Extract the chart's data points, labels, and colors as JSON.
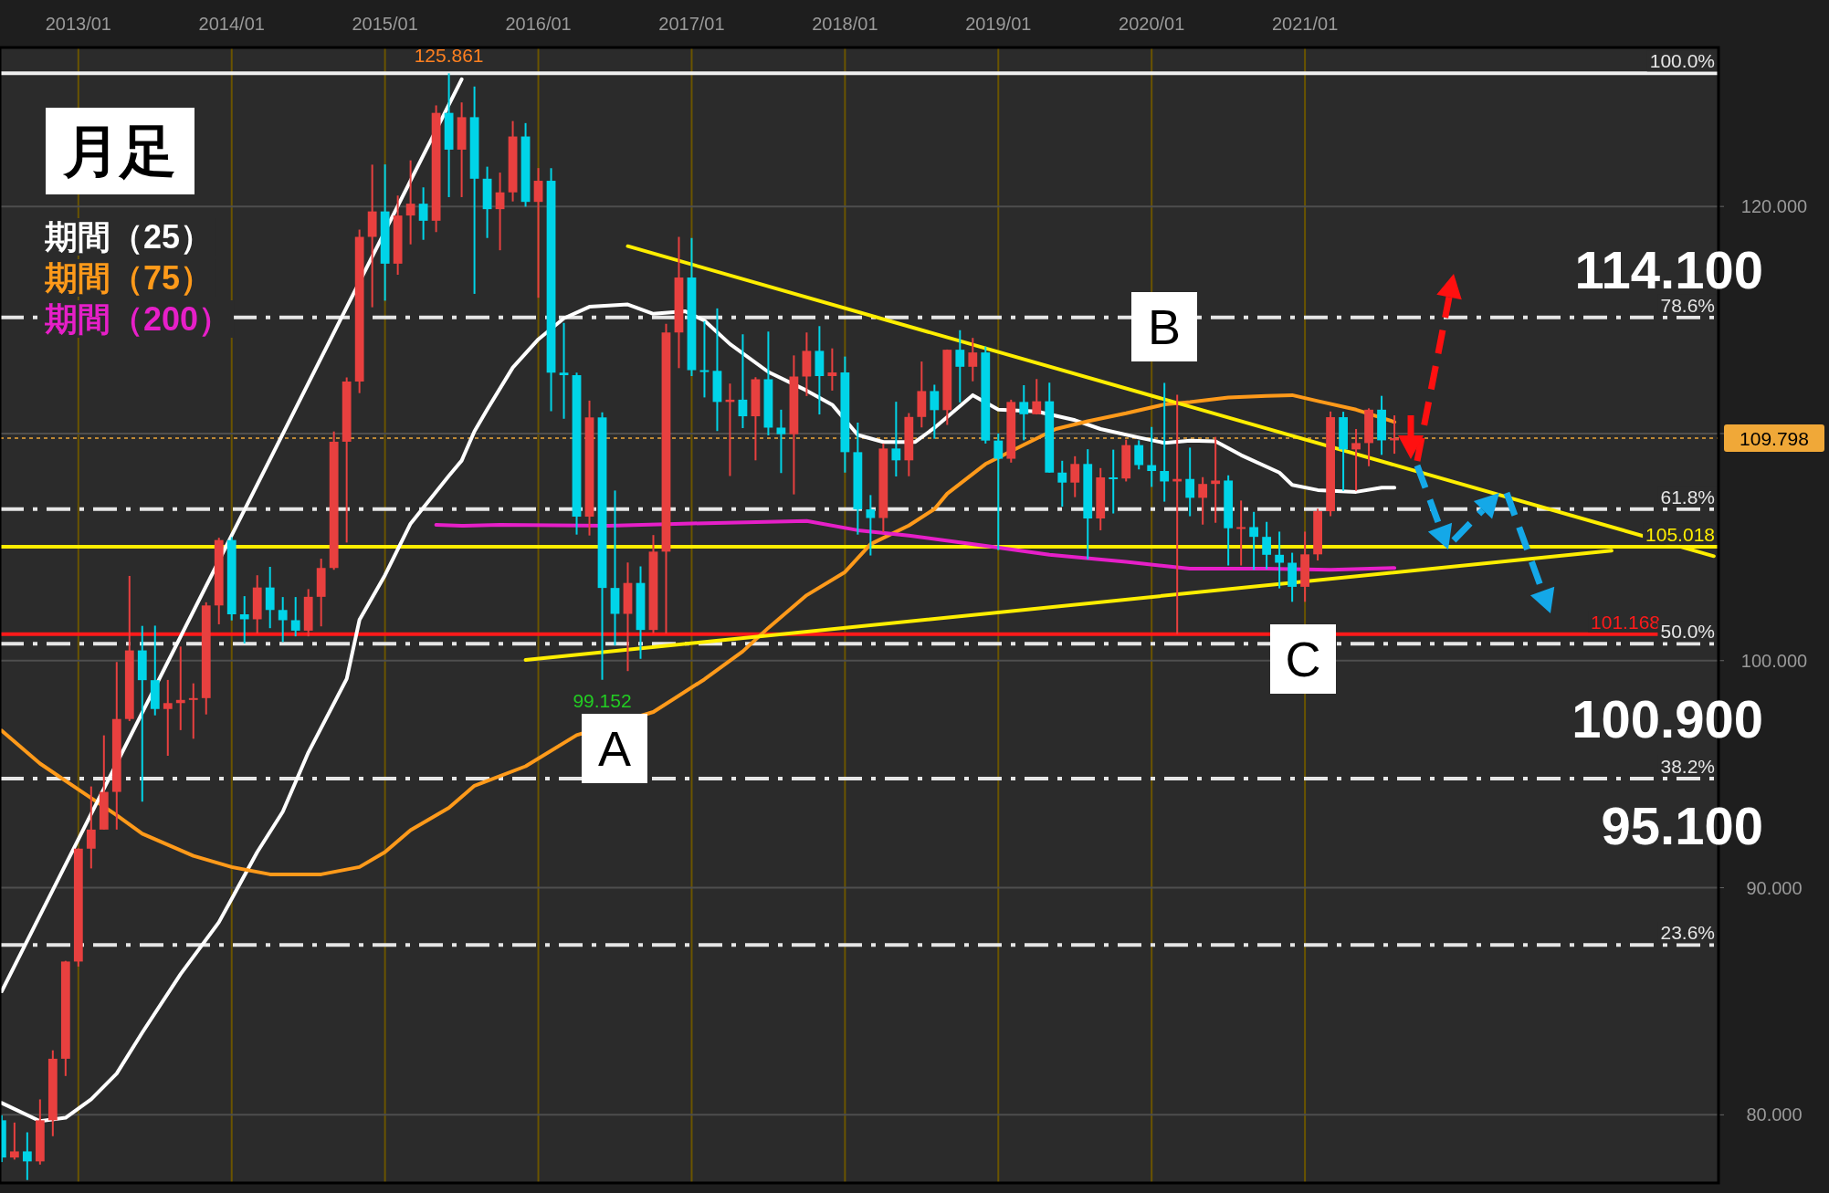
{
  "chart_data": {
    "type": "candlestick",
    "title": "月足",
    "x": [
      "2012-07",
      "2012-08",
      "2012-09",
      "2012-10",
      "2012-11",
      "2012-12",
      "2013-01",
      "2013-02",
      "2013-03",
      "2013-04",
      "2013-05",
      "2013-06",
      "2013-07",
      "2013-08",
      "2013-09",
      "2013-10",
      "2013-11",
      "2013-12",
      "2014-01",
      "2014-02",
      "2014-03",
      "2014-04",
      "2014-05",
      "2014-06",
      "2014-07",
      "2014-08",
      "2014-09",
      "2014-10",
      "2014-11",
      "2014-12",
      "2015-01",
      "2015-02",
      "2015-03",
      "2015-04",
      "2015-05",
      "2015-06",
      "2015-07",
      "2015-08",
      "2015-09",
      "2015-10",
      "2015-11",
      "2015-12",
      "2016-01",
      "2016-02",
      "2016-03",
      "2016-04",
      "2016-05",
      "2016-06",
      "2016-07",
      "2016-08",
      "2016-09",
      "2016-10",
      "2016-11",
      "2016-12",
      "2017-01",
      "2017-02",
      "2017-03",
      "2017-04",
      "2017-05",
      "2017-06",
      "2017-07",
      "2017-08",
      "2017-09",
      "2017-10",
      "2017-11",
      "2017-12",
      "2018-01",
      "2018-02",
      "2018-03",
      "2018-04",
      "2018-05",
      "2018-06",
      "2018-07",
      "2018-08",
      "2018-09",
      "2018-10",
      "2018-11",
      "2018-12",
      "2019-01",
      "2019-02",
      "2019-03",
      "2019-04",
      "2019-05",
      "2019-06",
      "2019-07",
      "2019-08",
      "2019-09",
      "2019-10",
      "2019-11",
      "2019-12",
      "2020-01",
      "2020-02",
      "2020-03",
      "2020-04",
      "2020-05",
      "2020-06",
      "2020-07",
      "2020-08",
      "2020-09",
      "2020-10",
      "2020-11",
      "2020-12",
      "2021-01",
      "2021-02",
      "2021-03",
      "2021-04",
      "2021-05",
      "2021-06",
      "2021-07",
      "2021-08"
    ],
    "ohlc": [
      [
        79.76,
        79.98,
        77.92,
        78.12
      ],
      [
        78.12,
        79.66,
        78.03,
        78.39
      ],
      [
        78.39,
        79.23,
        77.13,
        77.95
      ],
      [
        77.95,
        80.68,
        77.81,
        79.76
      ],
      [
        79.76,
        82.84,
        79.06,
        82.47
      ],
      [
        82.47,
        86.78,
        81.71,
        86.75
      ],
      [
        86.75,
        91.73,
        86.53,
        91.72
      ],
      [
        91.72,
        94.46,
        90.85,
        92.56
      ],
      [
        92.56,
        96.71,
        92.56,
        94.22
      ],
      [
        94.22,
        99.94,
        92.56,
        97.43
      ],
      [
        97.43,
        103.73,
        97.34,
        100.45
      ],
      [
        100.45,
        101.53,
        93.79,
        99.14
      ],
      [
        99.14,
        101.54,
        97.59,
        97.87
      ],
      [
        97.87,
        99.15,
        95.81,
        98.13
      ],
      [
        98.13,
        100.62,
        96.94,
        98.27
      ],
      [
        98.27,
        99.0,
        96.56,
        98.35
      ],
      [
        98.35,
        102.57,
        97.63,
        102.43
      ],
      [
        102.43,
        105.41,
        101.6,
        105.31
      ],
      [
        105.31,
        105.44,
        101.77,
        102.04
      ],
      [
        102.04,
        102.84,
        100.76,
        101.82
      ],
      [
        101.82,
        103.76,
        101.2,
        103.22
      ],
      [
        103.22,
        104.13,
        101.43,
        102.23
      ],
      [
        102.23,
        102.8,
        100.82,
        101.78
      ],
      [
        101.78,
        102.8,
        101.07,
        101.32
      ],
      [
        101.32,
        103.15,
        101.07,
        102.81
      ],
      [
        102.81,
        104.49,
        101.51,
        104.08
      ],
      [
        104.08,
        110.09,
        104.0,
        109.64
      ],
      [
        109.64,
        112.47,
        105.2,
        112.29
      ],
      [
        112.29,
        118.98,
        111.78,
        118.66
      ],
      [
        118.66,
        121.84,
        115.56,
        119.78
      ],
      [
        119.78,
        121.85,
        115.85,
        117.48
      ],
      [
        117.48,
        120.48,
        116.99,
        119.6
      ],
      [
        119.6,
        122.03,
        118.33,
        120.12
      ],
      [
        120.12,
        120.84,
        118.53,
        119.37
      ],
      [
        119.37,
        124.45,
        118.87,
        124.12
      ],
      [
        124.12,
        125.861,
        120.41,
        122.5
      ],
      [
        122.5,
        124.58,
        120.41,
        123.93
      ],
      [
        123.93,
        125.28,
        116.15,
        121.22
      ],
      [
        121.22,
        121.75,
        118.61,
        119.88
      ],
      [
        119.88,
        121.49,
        118.07,
        120.62
      ],
      [
        120.62,
        123.76,
        120.22,
        123.08
      ],
      [
        123.08,
        123.67,
        119.99,
        120.2
      ],
      [
        120.2,
        121.69,
        115.98,
        121.13
      ],
      [
        121.13,
        121.68,
        110.98,
        112.68
      ],
      [
        112.68,
        114.87,
        110.65,
        112.57
      ],
      [
        112.57,
        112.68,
        105.55,
        106.34
      ],
      [
        106.34,
        111.45,
        105.51,
        110.71
      ],
      [
        110.71,
        110.93,
        99.152,
        103.2
      ],
      [
        103.2,
        107.49,
        100.67,
        102.06
      ],
      [
        102.06,
        104.32,
        99.54,
        103.42
      ],
      [
        103.42,
        104.15,
        100.08,
        101.35
      ],
      [
        101.35,
        105.53,
        101.21,
        104.8
      ],
      [
        104.8,
        114.83,
        101.2,
        114.45
      ],
      [
        114.45,
        118.66,
        112.88,
        116.87
      ],
      [
        116.87,
        118.61,
        112.53,
        112.79
      ],
      [
        112.79,
        114.95,
        111.59,
        112.76
      ],
      [
        112.76,
        115.51,
        110.11,
        111.39
      ],
      [
        111.39,
        112.2,
        108.13,
        111.49
      ],
      [
        111.49,
        114.37,
        110.24,
        110.76
      ],
      [
        110.76,
        112.48,
        108.82,
        112.39
      ],
      [
        112.39,
        114.49,
        109.92,
        110.26
      ],
      [
        110.26,
        111.05,
        108.26,
        109.97
      ],
      [
        109.97,
        113.44,
        107.32,
        112.51
      ],
      [
        112.51,
        114.45,
        111.65,
        113.64
      ],
      [
        113.64,
        114.73,
        110.84,
        112.53
      ],
      [
        112.53,
        113.75,
        111.89,
        112.69
      ],
      [
        112.69,
        113.39,
        108.28,
        109.18
      ],
      [
        109.18,
        110.48,
        105.55,
        106.66
      ],
      [
        106.66,
        107.29,
        104.63,
        106.28
      ],
      [
        106.28,
        109.56,
        105.66,
        109.34
      ],
      [
        109.34,
        111.4,
        108.11,
        108.82
      ],
      [
        108.82,
        110.9,
        108.12,
        110.73
      ],
      [
        110.73,
        113.17,
        110.27,
        111.87
      ],
      [
        111.87,
        112.15,
        109.77,
        111.03
      ],
      [
        111.03,
        113.7,
        110.38,
        113.69
      ],
      [
        113.69,
        114.55,
        111.37,
        112.94
      ],
      [
        112.94,
        114.21,
        112.3,
        113.57
      ],
      [
        113.57,
        113.83,
        109.56,
        109.69
      ],
      [
        109.69,
        110.0,
        104.87,
        108.89
      ],
      [
        108.89,
        111.49,
        108.72,
        111.39
      ],
      [
        111.39,
        112.13,
        109.7,
        110.85
      ],
      [
        110.85,
        112.4,
        110.84,
        111.42
      ],
      [
        111.42,
        112.24,
        108.28,
        108.28
      ],
      [
        108.28,
        108.8,
        106.78,
        107.84
      ],
      [
        107.84,
        109.0,
        107.2,
        108.66
      ],
      [
        108.66,
        109.31,
        104.46,
        106.26
      ],
      [
        106.26,
        108.48,
        105.74,
        108.07
      ],
      [
        108.07,
        109.29,
        106.48,
        108.02
      ],
      [
        108.02,
        109.73,
        107.89,
        109.49
      ],
      [
        109.49,
        109.7,
        108.42,
        108.61
      ],
      [
        108.61,
        110.29,
        107.65,
        108.35
      ],
      [
        108.35,
        112.23,
        107.0,
        107.89
      ],
      [
        107.89,
        111.71,
        101.18,
        108.0
      ],
      [
        108.0,
        109.38,
        106.36,
        107.17
      ],
      [
        107.17,
        108.08,
        105.99,
        107.78
      ],
      [
        107.78,
        109.85,
        106.07,
        107.93
      ],
      [
        107.93,
        108.16,
        104.19,
        105.83
      ],
      [
        105.83,
        107.05,
        104.19,
        105.88
      ],
      [
        105.88,
        106.55,
        104.0,
        105.45
      ],
      [
        105.45,
        106.11,
        104.03,
        104.66
      ],
      [
        104.66,
        105.68,
        103.18,
        104.31
      ],
      [
        104.31,
        104.75,
        102.59,
        103.25
      ],
      [
        103.25,
        105.68,
        102.59,
        104.68
      ],
      [
        104.68,
        106.69,
        104.41,
        106.58
      ],
      [
        106.58,
        110.97,
        106.36,
        110.72
      ],
      [
        110.72,
        110.96,
        107.48,
        109.3
      ],
      [
        109.3,
        110.2,
        107.48,
        109.58
      ],
      [
        109.58,
        111.11,
        108.56,
        111.05
      ],
      [
        111.05,
        111.66,
        109.06,
        109.7
      ],
      [
        109.7,
        110.8,
        109.11,
        109.798
      ]
    ],
    "colors": [
      "#00d4e8",
      "#e8403f",
      "#00d4e8",
      "#e8403f",
      "#e8403f",
      "#e8403f",
      "#e8403f",
      "#e8403f",
      "#e8403f",
      "#e8403f",
      "#e8403f",
      "#00d4e8",
      "#00d4e8",
      "#e8403f",
      "#e8403f",
      "#e8403f",
      "#e8403f",
      "#e8403f",
      "#00d4e8",
      "#00d4e8",
      "#e8403f",
      "#00d4e8",
      "#00d4e8",
      "#00d4e8",
      "#e8403f",
      "#e8403f",
      "#e8403f",
      "#e8403f",
      "#e8403f",
      "#e8403f",
      "#00d4e8",
      "#e8403f",
      "#e8403f",
      "#00d4e8",
      "#e8403f",
      "#00d4e8",
      "#e8403f",
      "#00d4e8",
      "#00d4e8",
      "#e8403f",
      "#e8403f",
      "#00d4e8",
      "#e8403f",
      "#00d4e8",
      "#00d4e8",
      "#00d4e8",
      "#e8403f",
      "#00d4e8",
      "#00d4e8",
      "#e8403f",
      "#00d4e8",
      "#e8403f",
      "#e8403f",
      "#e8403f",
      "#00d4e8",
      "#00d4e8",
      "#00d4e8",
      "#e8403f",
      "#00d4e8",
      "#e8403f",
      "#00d4e8",
      "#00d4e8",
      "#e8403f",
      "#e8403f",
      "#00d4e8",
      "#e8403f",
      "#00d4e8",
      "#00d4e8",
      "#00d4e8",
      "#e8403f",
      "#00d4e8",
      "#e8403f",
      "#e8403f",
      "#00d4e8",
      "#e8403f",
      "#00d4e8",
      "#e8403f",
      "#00d4e8",
      "#00d4e8",
      "#e8403f",
      "#00d4e8",
      "#e8403f",
      "#00d4e8",
      "#00d4e8",
      "#e8403f",
      "#00d4e8",
      "#e8403f",
      "#00d4e8",
      "#e8403f",
      "#00d4e8",
      "#00d4e8",
      "#00d4e8",
      "#e8403f",
      "#00d4e8",
      "#e8403f",
      "#e8403f",
      "#00d4e8",
      "#e8403f",
      "#00d4e8",
      "#00d4e8",
      "#00d4e8",
      "#00d4e8",
      "#e8403f",
      "#e8403f",
      "#e8403f",
      "#00d4e8",
      "#e8403f",
      "#e8403f",
      "#00d4e8",
      "#e8403f"
    ],
    "series": [
      {
        "type": "line",
        "name": "期間（25）",
        "color": "#ffffff",
        "x": [
          "2012-07",
          "2012-10",
          "2012-12",
          "2013-02",
          "2013-04",
          "2013-06",
          "2013-09",
          "2013-12",
          "2014-03",
          "2014-05",
          "2014-07",
          "2014-10",
          "2014-11",
          "2015-01",
          "2015-03",
          "2015-06",
          "2015-07",
          "2015-08",
          "2015-09",
          "2015-11",
          "2016-01",
          "2016-03",
          "2016-05",
          "2016-08",
          "2016-10",
          "2016-12-16",
          "2017-02",
          "2017-04",
          "2017-07",
          "2017-10",
          "2017-12",
          "2018-02",
          "2018-04",
          "2018-06-16",
          "2018-08",
          "2018-11",
          "2019-01",
          "2019-04",
          "2019-07",
          "2019-09",
          "2019-12",
          "2020-02",
          "2020-04",
          "2020-06",
          "2020-08",
          "2020-11",
          "2020-12",
          "2021-02",
          "2021-05",
          "2021-07",
          "2021-08"
        ],
        "values": [
          80.52,
          79.72,
          79.87,
          80.68,
          81.82,
          83.62,
          86.2,
          88.48,
          91.57,
          93.35,
          95.96,
          99.2,
          101.8,
          103.76,
          106.03,
          108.14,
          108.81,
          110.1,
          111.06,
          112.91,
          114.15,
          115.07,
          115.58,
          115.68,
          115.27,
          115.38,
          114.97,
          113.94,
          112.71,
          111.89,
          111.27,
          109.94,
          109.63,
          109.63,
          110.25,
          111.69,
          111.05,
          110.97,
          110.59,
          110.2,
          109.82,
          109.59,
          109.69,
          109.66,
          109.05,
          108.28,
          107.74,
          107.51,
          107.43,
          107.62,
          107.62
        ]
      },
      {
        "type": "line",
        "name": "期間（75）",
        "color": "#ff9a1a",
        "x": [
          "2012-07",
          "2012-10",
          "2013-01",
          "2013-04",
          "2013-06",
          "2013-10",
          "2014-01",
          "2014-04",
          "2014-08",
          "2014-11",
          "2015-01",
          "2015-03",
          "2015-06",
          "2015-08",
          "2015-12",
          "2016-04",
          "2016-10",
          "2017-02",
          "2017-05",
          "2017-07",
          "2017-10",
          "2018-01",
          "2018-03",
          "2018-06",
          "2018-08",
          "2018-09",
          "2018-12",
          "2019-03",
          "2019-05-16",
          "2019-08",
          "2019-11",
          "2020-02",
          "2020-04",
          "2020-07",
          "2020-10",
          "2020-12",
          "2021-02",
          "2021-05",
          "2021-08"
        ],
        "values": [
          96.92,
          95.47,
          94.33,
          93.19,
          92.38,
          91.4,
          90.91,
          90.59,
          90.59,
          90.91,
          91.57,
          92.54,
          93.52,
          94.49,
          95.35,
          96.72,
          97.74,
          99.18,
          100.41,
          101.44,
          102.88,
          103.9,
          105.13,
          105.95,
          106.67,
          107.35,
          108.66,
          109.51,
          110.2,
          110.54,
          110.89,
          111.28,
          111.39,
          111.59,
          111.66,
          111.69,
          111.43,
          111.05,
          110.51
        ]
      },
      {
        "type": "line",
        "name": "期間（200）",
        "color": "#e61fc8",
        "x": [
          "2015-05",
          "2015-07",
          "2015-10",
          "2016-06-16",
          "2017-01",
          "2017-10",
          "2018-02",
          "2018-06",
          "2018-12",
          "2019-05",
          "2019-11",
          "2020-04",
          "2020-10",
          "2021-03",
          "2021-08"
        ],
        "values": [
          105.98,
          105.94,
          105.98,
          105.94,
          106.04,
          106.15,
          105.74,
          105.51,
          105.05,
          104.66,
          104.35,
          104.05,
          104.05,
          104.0,
          104.08
        ]
      },
      {
        "type": "line",
        "color": "#ffffff",
        "x": [
          "2012-07",
          "2015-07"
        ],
        "values": [
          85.44,
          125.6
        ]
      },
      {
        "type": "line",
        "color": "#ffee00",
        "x": [
          "2016-08",
          "2023-09"
        ],
        "values": [
          118.25,
          104.6
        ]
      },
      {
        "type": "line",
        "color": "#ffee00",
        "x": [
          "2015-12",
          "2023-01"
        ],
        "values": [
          100.03,
          104.84
        ]
      }
    ],
    "xlim": [
      "2012-06-27",
      "2023-09-12"
    ],
    "ylim": [
      77,
      127
    ],
    "xticks": [
      {
        "value": "2013-01",
        "label": "2013/01"
      },
      {
        "value": "2014-01",
        "label": "2014/01"
      },
      {
        "value": "2015-01",
        "label": "2015/01"
      },
      {
        "value": "2016-01",
        "label": "2016/01"
      },
      {
        "value": "2017-01",
        "label": "2017/01"
      },
      {
        "value": "2018-01",
        "label": "2018/01"
      },
      {
        "value": "2019-01",
        "label": "2019/01"
      },
      {
        "value": "2020-01",
        "label": "2020/01"
      },
      {
        "value": "2021-01",
        "label": "2021/01"
      }
    ],
    "yticks": [
      {
        "value": 80,
        "label": "80.000"
      },
      {
        "value": 90,
        "label": "90.000"
      },
      {
        "value": 100,
        "label": "100.000"
      },
      {
        "value": 110,
        "label": null
      },
      {
        "value": 120,
        "label": "120.000"
      }
    ],
    "grid": true,
    "legend": "top left",
    "ref_lines": [
      {
        "axis": "y",
        "value": 125.861,
        "color": "#f0f0f0",
        "line_style": "solid"
      },
      {
        "axis": "y",
        "value": 115.11,
        "color": "#e6e6e6",
        "line_style": "dashed"
      },
      {
        "axis": "y",
        "value": 106.67,
        "color": "#e6e6e6",
        "line_style": "dashed"
      },
      {
        "axis": "y",
        "value": 105.018,
        "label": "105.018",
        "color": "#ffee00",
        "line_style": "solid"
      },
      {
        "axis": "y",
        "value": 101.168,
        "label": "101.168",
        "color": "#ff1a1a",
        "line_style": "solid"
      },
      {
        "axis": "y",
        "value": 100.74,
        "color": "#e6e6e6",
        "line_style": "dashed"
      },
      {
        "axis": "y",
        "value": 94.81,
        "color": "#e6e6e6",
        "line_style": "dashed"
      },
      {
        "axis": "y",
        "value": 87.48,
        "color": "#e6e6e6",
        "line_style": "dashed"
      },
      {
        "axis": "y",
        "value": 109.798,
        "label": "109.798",
        "color": "#f0a838",
        "line_style": "dotted"
      }
    ],
    "annotations": [
      {
        "text": "125.861",
        "x": "2015-06",
        "y": 125.861
      },
      {
        "text": "99.152",
        "x": "2016-06",
        "y": 99.152
      },
      {
        "text": "100.0%",
        "x": "2023-09-12",
        "y": 125.861
      },
      {
        "text": "78.6%",
        "x": "2023-09-12",
        "y": 115.11
      },
      {
        "text": "61.8%",
        "x": "2023-09-12",
        "y": 106.67
      },
      {
        "text": "50.0%",
        "x": "2023-09-12",
        "y": 100.74
      },
      {
        "text": "38.2%",
        "x": "2023-09-12",
        "y": 94.81
      },
      {
        "text": "23.6%",
        "x": "2023-09-12",
        "y": 87.48
      },
      "A",
      "B",
      "C",
      "114.100",
      "100.900",
      "95.100"
    ]
  }
}
